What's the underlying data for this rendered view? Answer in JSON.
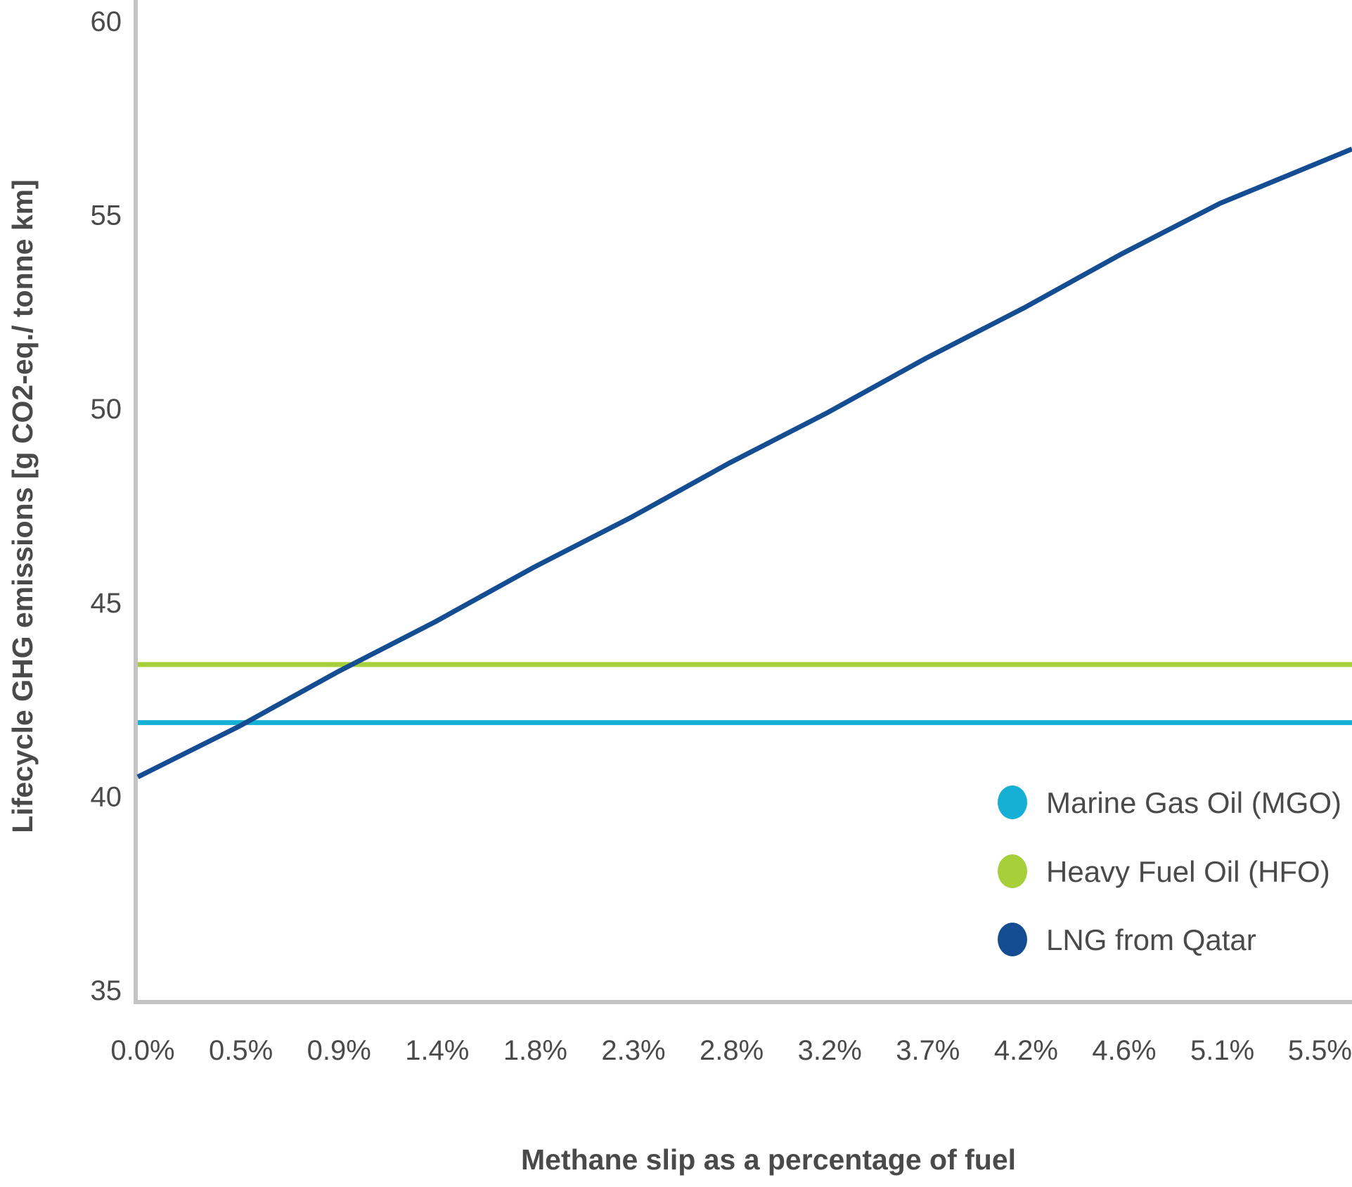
{
  "chart_data": {
    "type": "line",
    "title": "",
    "xlabel": "Methane slip as a percentage of fuel",
    "ylabel": "Lifecycle GHG emissions [g CO2-eq./ tonne km]",
    "categories": [
      "0.0%",
      "0.5%",
      "0.9%",
      "1.4%",
      "1.8%",
      "2.3%",
      "2.8%",
      "3.2%",
      "3.7%",
      "4.2%",
      "4.6%",
      "5.1%",
      "5.5%"
    ],
    "ylim": [
      35,
      60
    ],
    "yticks": [
      35,
      40,
      45,
      50,
      55,
      60
    ],
    "grid": false,
    "legend_position": "bottom-right",
    "series": [
      {
        "name": "Marine Gas Oil (MGO)",
        "color": "#16b0d4",
        "values": [
          41.9,
          41.9,
          41.9,
          41.9,
          41.9,
          41.9,
          41.9,
          41.9,
          41.9,
          41.9,
          41.9,
          41.9,
          41.9
        ]
      },
      {
        "name": "Heavy Fuel Oil (HFO)",
        "color": "#a6cf3a",
        "values": [
          43.4,
          43.4,
          43.4,
          43.4,
          43.4,
          43.4,
          43.4,
          43.4,
          43.4,
          43.4,
          43.4,
          43.4,
          43.4
        ]
      },
      {
        "name": "LNG from Qatar",
        "color": "#144d92",
        "values": [
          40.5,
          41.8,
          43.2,
          44.5,
          45.9,
          47.2,
          48.6,
          49.9,
          51.3,
          52.6,
          54.0,
          55.3,
          56.7
        ]
      }
    ]
  }
}
